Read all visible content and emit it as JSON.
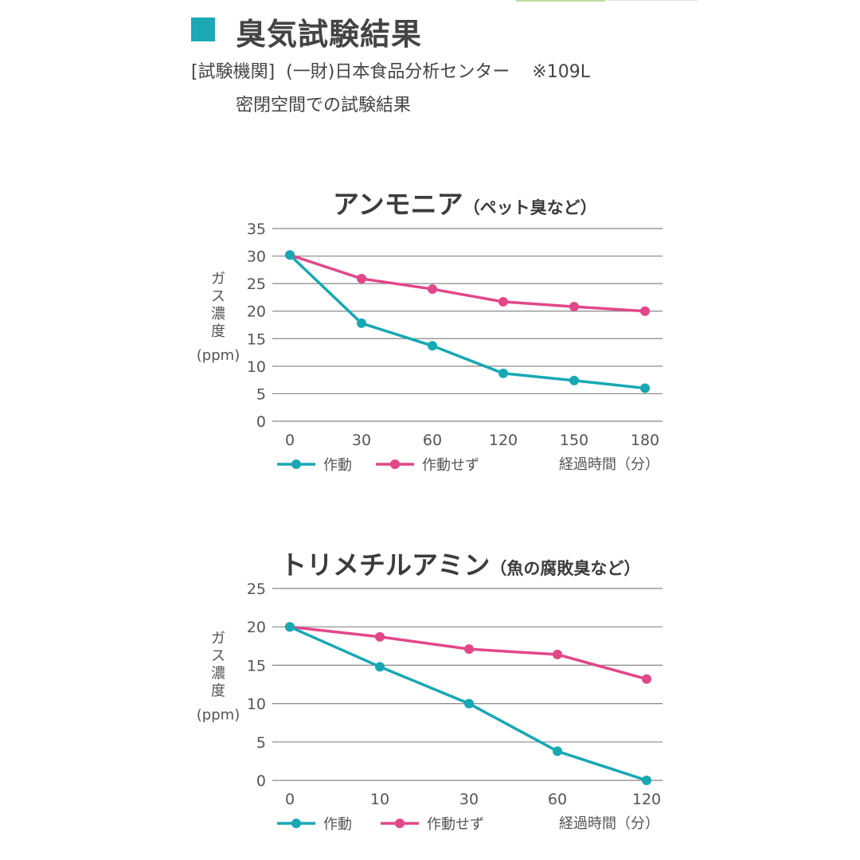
{
  "header": {
    "title": "臭気試験結果",
    "subtitle_line1": "[試験機関]  (一財)日本食品分析センター    ※109L",
    "subtitle_line2": "密閉空間での試験結果",
    "accent_color": "#1aa9b5"
  },
  "chart_data": [
    {
      "type": "line",
      "title": "アンモニア",
      "title_note": "（ペット臭など）",
      "ylabel": "ガス濃度(ppm)",
      "xlabel": "経過時間（分）",
      "categories": [
        "0",
        "30",
        "60",
        "120",
        "150",
        "180"
      ],
      "ylim": [
        0,
        35
      ],
      "yticks": [
        0,
        5,
        10,
        15,
        20,
        25,
        30,
        35
      ],
      "grid": true,
      "legend": "bottom-left",
      "series": [
        {
          "name": "作動",
          "color": "#17a8b3",
          "values": [
            30.2,
            17.8,
            13.7,
            8.7,
            7.4,
            6.0
          ]
        },
        {
          "name": "作動せず",
          "color": "#e2478a",
          "values": [
            30.2,
            25.9,
            24.0,
            21.7,
            20.8,
            20.0
          ]
        }
      ]
    },
    {
      "type": "line",
      "title": "トリメチルアミン",
      "title_note": "（魚の腐敗臭など）",
      "ylabel": "ガス濃度(ppm)",
      "xlabel": "経過時間（分）",
      "categories": [
        "0",
        "10",
        "30",
        "60",
        "120"
      ],
      "ylim": [
        0,
        25
      ],
      "yticks": [
        0,
        5,
        10,
        15,
        20,
        25
      ],
      "grid": true,
      "legend": "bottom-left",
      "series": [
        {
          "name": "作動",
          "color": "#17a8b3",
          "values": [
            20.0,
            14.8,
            10.0,
            3.8,
            0.0
          ]
        },
        {
          "name": "作動せず",
          "color": "#e2478a",
          "values": [
            20.0,
            18.7,
            17.1,
            16.4,
            13.2
          ]
        }
      ]
    }
  ]
}
